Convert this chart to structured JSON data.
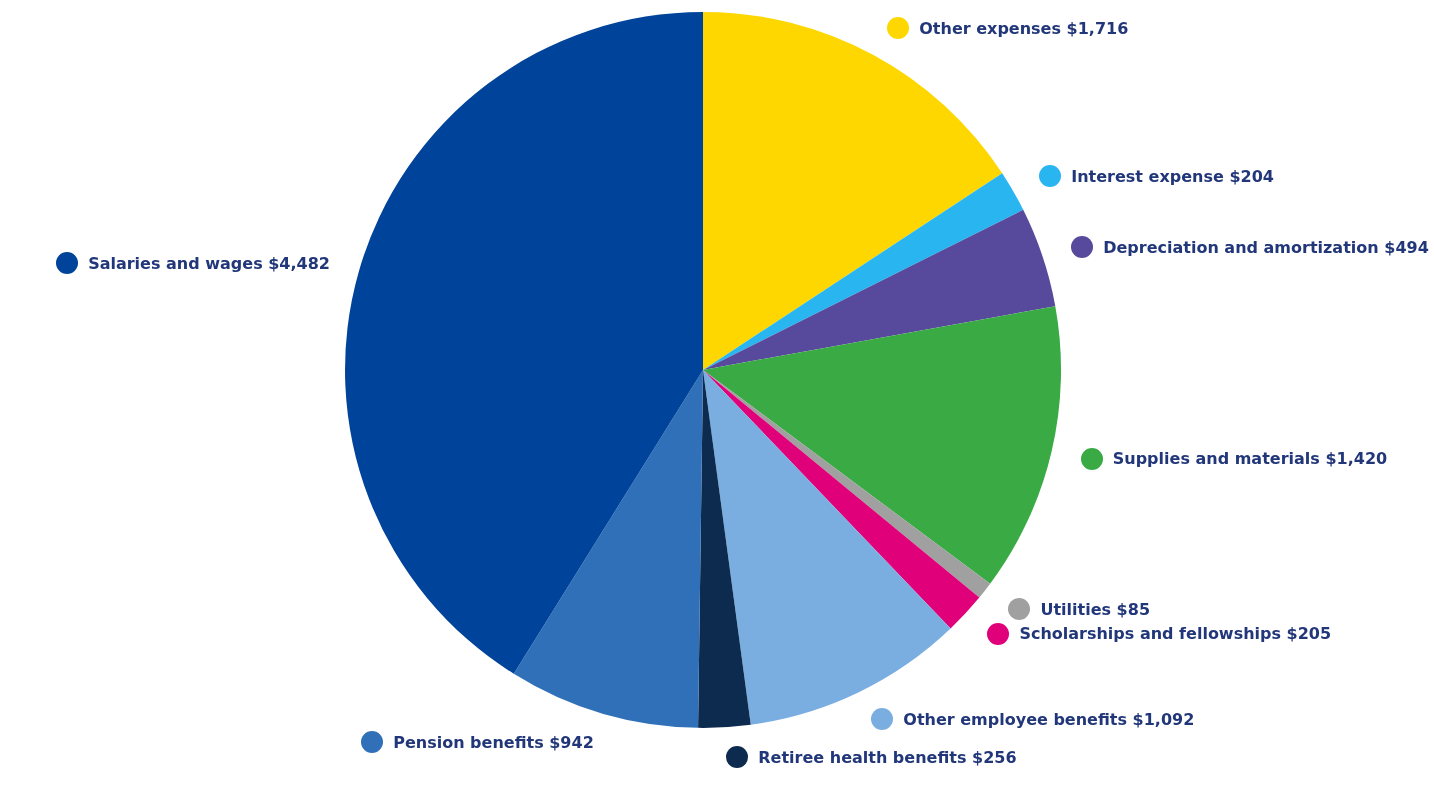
{
  "chart_data": {
    "type": "pie",
    "categories": [
      "Other expenses",
      "Interest expense",
      "Depreciation and amortization",
      "Supplies and materials",
      "Utilities",
      "Scholarships and fellowships",
      "Other employee benefits",
      "Retiree health benefits",
      "Pension benefits",
      "Salaries and wages"
    ],
    "values": [
      1716,
      204,
      494,
      1420,
      85,
      205,
      1092,
      256,
      942,
      4482
    ],
    "value_labels": [
      "$1,716",
      "$204",
      "$494",
      "$1,420",
      "$85",
      "$205",
      "$1,092",
      "$256",
      "$942",
      "$4,482"
    ],
    "legend": "right",
    "colors": [
      "#fed700",
      "#29b6f0",
      "#574a9c",
      "#3aaa45",
      "#a0a0a0",
      "#e0007a",
      "#7aaee0",
      "#0d2b4e",
      "#3070b8",
      "#00439a"
    ]
  }
}
